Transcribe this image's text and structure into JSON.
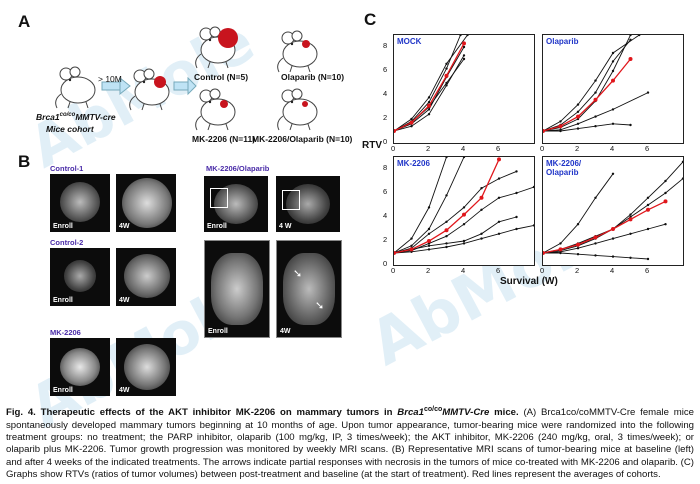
{
  "panels": {
    "a": "A",
    "b": "B",
    "c": "C"
  },
  "panel_a": {
    "arrow_label": "> 10M",
    "cohort_line1_main": "Brca1",
    "cohort_line1_sup": "co/co",
    "cohort_line1_rest": "MMTV-cre",
    "cohort_line2": "Mice cohort",
    "groups": [
      "Control (N=5)",
      "Olaparib (N=10)",
      "MK-2206 (N=11)",
      "MK-2206/Olaparib (N=10)"
    ]
  },
  "panel_b": {
    "group_labels": [
      "Control-1",
      "Control-2",
      "MK-2206",
      "MK-2206/Olaparib"
    ],
    "scan_labels": {
      "enroll": "Enroll",
      "week4": "4W",
      "week4_alt": "4 W"
    }
  },
  "panel_c": {
    "ylabel": "RTV",
    "xlabel": "Survival (W)",
    "yticks": [
      "8",
      "6",
      "4",
      "2",
      "0"
    ],
    "xticks": [
      "0",
      "2",
      "4",
      "6"
    ],
    "series_color": "#111111",
    "average_color": "#e0161b"
  },
  "chart_data": [
    {
      "type": "line",
      "title": "MOCK",
      "xlim": [
        0,
        8
      ],
      "ylim": [
        0,
        9
      ],
      "series": [
        {
          "x": [
            0,
            1,
            2,
            3,
            4
          ],
          "y": [
            1,
            1.6,
            2.8,
            5.5,
            8
          ]
        },
        {
          "x": [
            0,
            1,
            2,
            3,
            3.8
          ],
          "y": [
            1,
            1.8,
            3.4,
            6.2,
            9
          ]
        },
        {
          "x": [
            0,
            1,
            2,
            3,
            4
          ],
          "y": [
            1,
            1.4,
            2.4,
            4.8,
            7.3
          ]
        },
        {
          "x": [
            0,
            1,
            2,
            3,
            4.2
          ],
          "y": [
            1,
            2.0,
            3.8,
            6.6,
            9
          ]
        },
        {
          "x": [
            0,
            1,
            2,
            3,
            4
          ],
          "y": [
            1,
            1.7,
            3.0,
            5.0,
            7.0
          ]
        }
      ],
      "average": {
        "x": [
          0,
          1,
          2,
          3,
          4
        ],
        "y": [
          1,
          1.7,
          3.1,
          5.6,
          8.3
        ]
      }
    },
    {
      "type": "line",
      "title": "Olaparib",
      "xlim": [
        0,
        8
      ],
      "ylim": [
        0,
        9
      ],
      "series": [
        {
          "x": [
            0,
            1,
            2,
            3,
            4,
            5
          ],
          "y": [
            1,
            1.3,
            2.0,
            3.5,
            6.0,
            9
          ]
        },
        {
          "x": [
            0,
            1,
            2,
            3,
            4,
            5
          ],
          "y": [
            1,
            1.5,
            2.6,
            4.2,
            6.8,
            8.6
          ]
        },
        {
          "x": [
            0,
            1,
            2,
            3,
            4,
            6
          ],
          "y": [
            1,
            1.1,
            1.6,
            2.2,
            2.8,
            4.2
          ]
        },
        {
          "x": [
            0,
            1,
            2,
            3,
            4,
            5
          ],
          "y": [
            1,
            1.0,
            1.2,
            1.4,
            1.6,
            1.5
          ]
        },
        {
          "x": [
            0,
            1,
            2,
            3,
            4,
            5.5
          ],
          "y": [
            1,
            1.8,
            3.2,
            5.2,
            7.5,
            9
          ]
        }
      ],
      "average": {
        "x": [
          0,
          1,
          2,
          3,
          4,
          5
        ],
        "y": [
          1,
          1.4,
          2.2,
          3.6,
          5.2,
          7.0
        ]
      }
    },
    {
      "type": "line",
      "title": "MK-2206",
      "xlim": [
        0,
        8
      ],
      "ylim": [
        0,
        9
      ],
      "series": [
        {
          "x": [
            0,
            1,
            2,
            3,
            4
          ],
          "y": [
            1,
            1.6,
            3.0,
            5.8,
            9
          ]
        },
        {
          "x": [
            0,
            1,
            2,
            3,
            4,
            5,
            6,
            7
          ],
          "y": [
            1,
            1.4,
            2.6,
            3.6,
            4.8,
            6.4,
            7.2,
            7.8
          ]
        },
        {
          "x": [
            0,
            1,
            2,
            3,
            4,
            5,
            6,
            7,
            8
          ],
          "y": [
            1,
            1.2,
            1.8,
            2.4,
            3.4,
            4.6,
            5.6,
            6.0,
            6.5
          ]
        },
        {
          "x": [
            0,
            1,
            2,
            3,
            4,
            5,
            6,
            7
          ],
          "y": [
            1,
            1.3,
            1.6,
            1.8,
            2.0,
            2.6,
            3.6,
            4.0
          ]
        },
        {
          "x": [
            0,
            1,
            2,
            3,
            4,
            5,
            6,
            7,
            8
          ],
          "y": [
            1,
            1.1,
            1.3,
            1.5,
            1.8,
            2.2,
            2.6,
            3.0,
            3.3
          ]
        },
        {
          "x": [
            0,
            1,
            2,
            3
          ],
          "y": [
            1,
            2.2,
            4.8,
            9
          ]
        }
      ],
      "average": {
        "x": [
          0,
          1,
          2,
          3,
          4,
          5,
          6
        ],
        "y": [
          1,
          1.3,
          2.0,
          2.9,
          4.2,
          5.6,
          8.8
        ]
      }
    },
    {
      "type": "line",
      "title": "MK-2206/ Olaparib",
      "xlim": [
        0,
        8
      ],
      "ylim": [
        0,
        9
      ],
      "series": [
        {
          "x": [
            0,
            1,
            2,
            3,
            4,
            5,
            6,
            7,
            8
          ],
          "y": [
            1,
            1.2,
            1.6,
            2.2,
            3.0,
            4.2,
            5.6,
            7.0,
            8.6
          ]
        },
        {
          "x": [
            0,
            1,
            2,
            3,
            4
          ],
          "y": [
            1,
            1.8,
            3.4,
            5.6,
            7.6
          ]
        },
        {
          "x": [
            0,
            1,
            2,
            3,
            4,
            5,
            6,
            7
          ],
          "y": [
            1,
            1.1,
            1.4,
            1.8,
            2.2,
            2.6,
            3.0,
            3.4
          ]
        },
        {
          "x": [
            0,
            1,
            2,
            3,
            4,
            5,
            6
          ],
          "y": [
            1,
            1.0,
            0.9,
            0.8,
            0.7,
            0.6,
            0.5
          ]
        },
        {
          "x": [
            0,
            1,
            2,
            3,
            4,
            5,
            6,
            7,
            8
          ],
          "y": [
            1,
            1.3,
            1.8,
            2.4,
            3.0,
            4.0,
            5.0,
            6.0,
            7.2
          ]
        }
      ],
      "average": {
        "x": [
          0,
          1,
          2,
          3,
          4,
          5,
          6,
          7
        ],
        "y": [
          1,
          1.3,
          1.7,
          2.3,
          3.0,
          3.8,
          4.6,
          5.3
        ]
      }
    }
  ],
  "caption": {
    "fig": "Fig. 4. Therapeutic effects of the AKT inhibitor MK-2206 on mammary tumors in",
    "fig_gene": "Brca1",
    "fig_sup": "co/co",
    "fig_rest": "MMTV-Cre",
    "fig_end": " mice.",
    "body": " (A) Brca1co/coMMTV-Cre female mice spontaneously developed mammary tumors beginning at 10 months of age. Upon tumor appearance, tumor-bearing mice were randomized into the following treatment groups: no treatment; the PARP inhibitor, olaparib (100 mg/kg, IP, 3 times/week); the AKT inhibitor, MK-2206 (240 mg/kg, oral, 3 times/week); or olaparib plus MK-2206. Tumor growth progression was monitored by weekly MRI scans. (B) Representative MRI scans of tumor-bearing mice at baseline (left) and after 4 weeks of the indicated treatments. The arrows indicate partial responses with necrosis in the tumors of mice co-treated with MK-2206 and olaparib. (C) Graphs show RTVs (ratios of tumor volumes) between post-treatment and baseline (at the start of treatment). Red lines represent the averages of cohorts."
  },
  "watermark": "AbMole"
}
